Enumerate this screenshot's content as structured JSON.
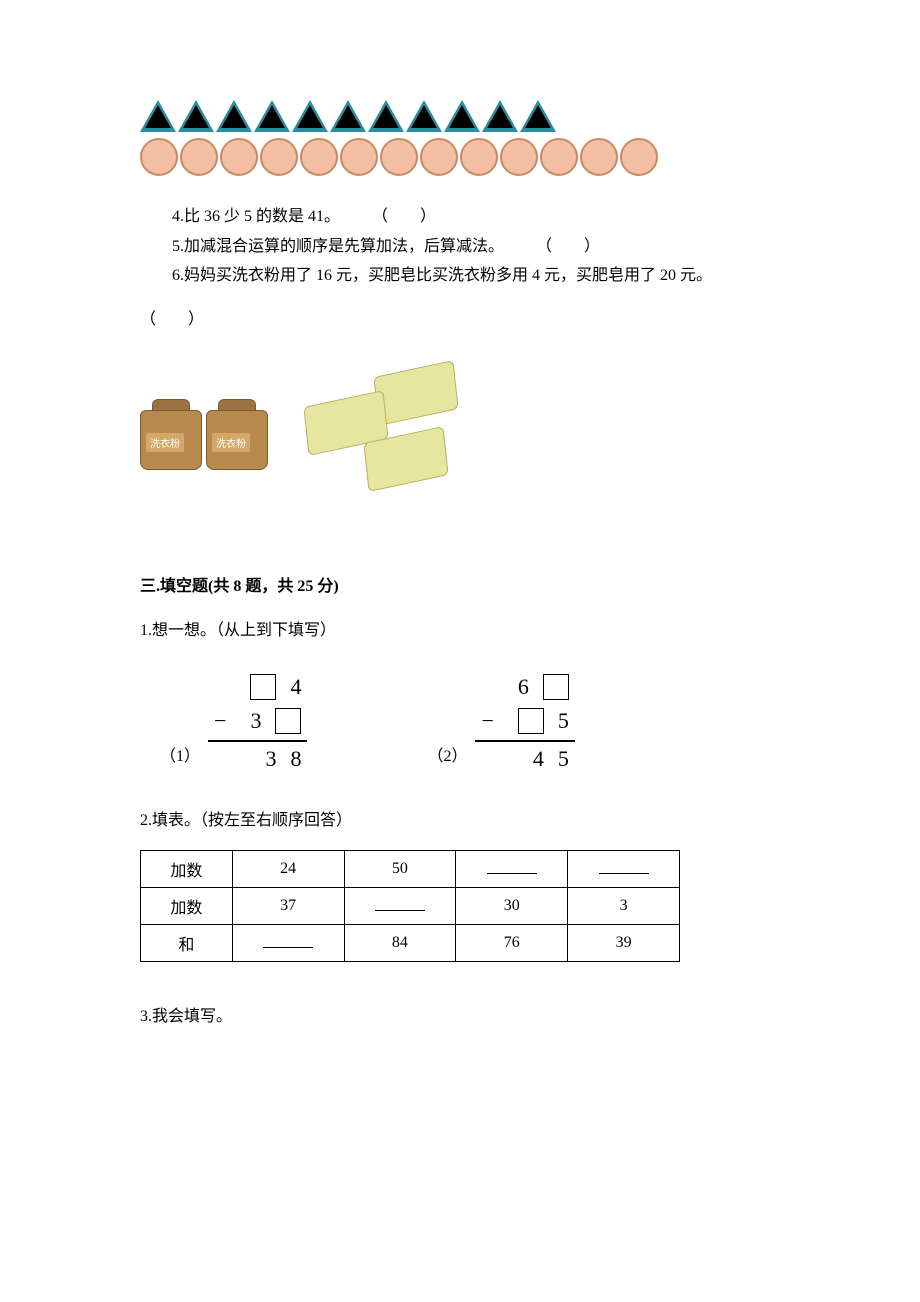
{
  "shapes": {
    "triangle_count": 11,
    "circle_count": 13,
    "triangle_fill": "#bce3e8",
    "triangle_stroke": "#2a8ca0",
    "circle_fill": "#f2bfa3",
    "circle_stroke": "#c98a65"
  },
  "judgement": {
    "q4": "4.比 36 少 5 的数是 41。　　　（　　）",
    "q5": "5.加减混合运算的顺序是先算加法，后算减法。　　　（　　）",
    "q6": "6.妈妈买洗衣粉用了 16 元，买肥皂比买洗衣粉多用 4 元，买肥皂用了 20 元。",
    "q6_paren": "（　　）"
  },
  "products": {
    "bag_label": "洗衣粉",
    "bag_body_color": "#b8884d",
    "bag_top_color": "#9a7340",
    "soap_color": "#e7e6a0"
  },
  "section3": {
    "title": "三.填空题(共 8 题，共 25 分)",
    "q1": "1.想一想。（从上到下填写）",
    "f1_label": "（1）",
    "f1": {
      "r1a": "4",
      "r2a": "3",
      "r3a": "3",
      "r3b": "8"
    },
    "f2_label": "（2）",
    "f2": {
      "r1a": "6",
      "r2b": "5",
      "r3a": "4",
      "r3b": "5"
    },
    "q2": "2.填表。（按左至右顺序回答）",
    "table": {
      "headers": [
        "加数",
        "加数",
        "和"
      ],
      "cols": [
        [
          "24",
          "37",
          ""
        ],
        [
          "50",
          "",
          "84"
        ],
        [
          "",
          "30",
          "76"
        ],
        [
          "",
          "3",
          "39"
        ]
      ]
    },
    "q3": "3.我会填写。"
  }
}
